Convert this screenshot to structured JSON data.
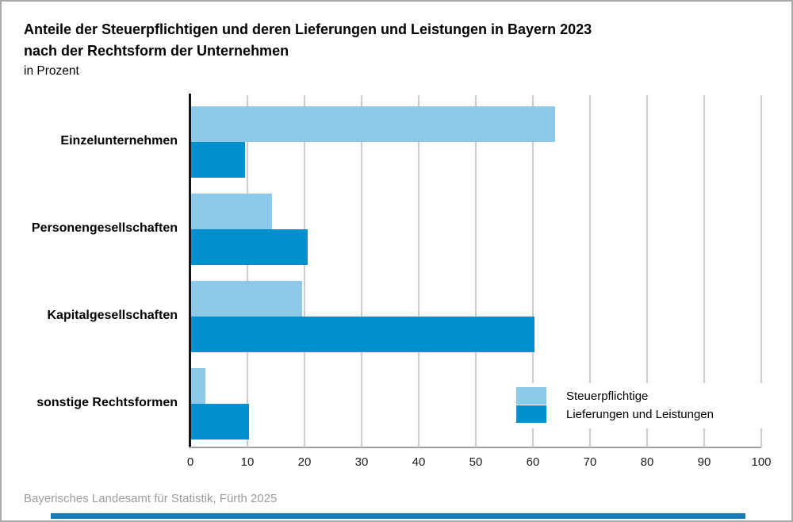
{
  "title": {
    "line1": "Anteile der Steuerpflichtigen und deren Lieferungen und Leistungen in Bayern 2023",
    "line2": "nach der Rechtsform der Unternehmen",
    "subtitle": "in Prozent"
  },
  "chart_data": {
    "type": "bar",
    "orientation": "horizontal",
    "title": "Anteile der Steuerpflichtigen und deren Lieferungen und Leistungen in Bayern 2023 nach der Rechtsform der Unternehmen",
    "unit": "Prozent",
    "categories": [
      "Einzelunternehmen",
      "Personengesellschaften",
      "Kapitalgesellschaften",
      "sonstige Rechtsformen"
    ],
    "series": [
      {
        "name": "Steuerpflichtige",
        "color": "#8FC9E9",
        "values": [
          63.7,
          14.2,
          19.4,
          2.5
        ]
      },
      {
        "name": "Lieferungen und Leistungen",
        "color": "#0090CE",
        "values": [
          9.5,
          20.4,
          60.1,
          10.1
        ]
      }
    ],
    "xlim": [
      0,
      100
    ],
    "xticks": [
      0,
      10,
      20,
      30,
      40,
      50,
      60,
      70,
      80,
      90,
      100
    ],
    "grid": true,
    "legend_position": "inside-bottom-right"
  },
  "footer": {
    "source": "Bayerisches Landesamt für Statistik, Fürth 2025"
  },
  "colors": {
    "bar_light": "#8FC9E9",
    "bar_dark": "#0090CE",
    "gridline": "#CBCBCB",
    "y_axis": "#141414",
    "baseline": "#9E9E9E",
    "footer_text": "#9B9B9B",
    "frame_border": "#A9A9A9",
    "bottom_accent": "#1A7AB8"
  }
}
